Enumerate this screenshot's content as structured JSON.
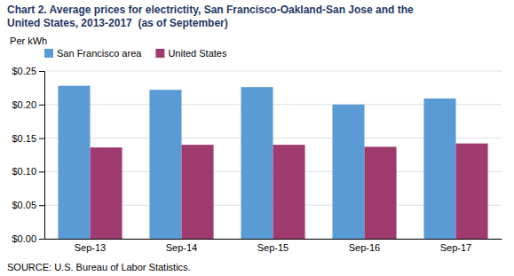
{
  "chart_data": {
    "type": "bar",
    "title": [
      "Chart 2. Average prices for electrictity, San Francisco-Oakland-San Jose and the",
      "United States, 2013-2017  (as of September)"
    ],
    "y_label": " Per kWh",
    "annotations": [
      "SOURCE: U.S. Bureau of Labor Statistics."
    ],
    "categories": [
      "Sep-13",
      "Sep-14",
      "Sep-15",
      "Sep-16",
      "Sep-17"
    ],
    "series": [
      {
        "name": "San Francisco area",
        "color": "#5B9BD5",
        "values": [
          0.228,
          0.222,
          0.226,
          0.2,
          0.209
        ]
      },
      {
        "name": "United States",
        "color": "#9E3A6E",
        "values": [
          0.136,
          0.14,
          0.14,
          0.137,
          0.142
        ]
      }
    ],
    "ylim": [
      0.0,
      0.25
    ],
    "yticks": [
      {
        "value": 0.0,
        "label": "$0.00"
      },
      {
        "value": 0.05,
        "label": "$0.05"
      },
      {
        "value": 0.1,
        "label": "$0.10"
      },
      {
        "value": 0.15,
        "label": "$0.15"
      },
      {
        "value": 0.2,
        "label": "$0.20"
      },
      {
        "value": 0.25,
        "label": "$0.25"
      }
    ],
    "grid": true,
    "legend": "upper left"
  }
}
